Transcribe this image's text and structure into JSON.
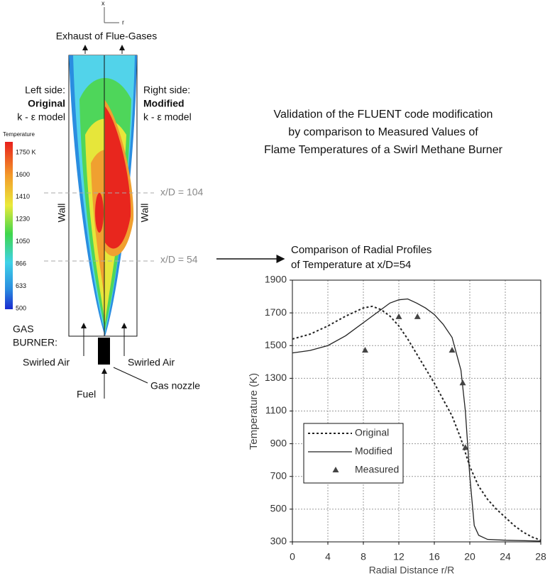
{
  "heading": [
    "Validation of the FLUENT code modification",
    "by comparison to Measured Values of",
    "Flame Temperatures of a Swirl Methane Burner"
  ],
  "diagram": {
    "axis_x": "x",
    "axis_r": "r",
    "exhaust": "Exhaust of Flue-Gases",
    "left": [
      "Left side:",
      "Original",
      "k - ε model"
    ],
    "right": [
      "Right side:",
      "Modified",
      "k - ε model"
    ],
    "wall_left": "Wall",
    "wall_right": "Wall",
    "section_upper": "x/D = 104",
    "section_lower": "x/D = 54",
    "burner": [
      "GAS",
      "BURNER:"
    ],
    "air_left": "Swirled Air",
    "air_right": "Swirled Air",
    "fuel": "Fuel",
    "nozzle": "Gas nozzle"
  },
  "colorbar": {
    "title": "Temperature",
    "labels": [
      "1750 K",
      "1600",
      "1410",
      "1230",
      "1050",
      "866",
      "633",
      "500"
    ]
  },
  "chart_data": {
    "type": "line",
    "title": [
      "Comparison of Radial Profiles",
      "of Temperature at x/D=54"
    ],
    "x_label": "Radial Distance r/R",
    "y_label": "Temperature (K)",
    "xlim": [
      0,
      28
    ],
    "ylim": [
      300,
      1900
    ],
    "xticks": [
      0,
      4,
      8,
      12,
      16,
      20,
      24,
      28
    ],
    "yticks": [
      300,
      500,
      700,
      900,
      1100,
      1300,
      1500,
      1700,
      1900
    ],
    "grid": true,
    "legend": "center left",
    "series": [
      {
        "name": "Original",
        "color": "#222222",
        "style": "dashed",
        "x": [
          0,
          2,
          4,
          6,
          8,
          9,
          10,
          11,
          12,
          13,
          14,
          15,
          16,
          17,
          18,
          19,
          20,
          21,
          22,
          23,
          24,
          25,
          26,
          27,
          28
        ],
        "values": [
          1540,
          1570,
          1620,
          1680,
          1730,
          1740,
          1720,
          1680,
          1620,
          1540,
          1450,
          1360,
          1270,
          1170,
          1070,
          930,
          760,
          640,
          560,
          500,
          450,
          400,
          360,
          330,
          310
        ]
      },
      {
        "name": "Modified",
        "color": "#222222",
        "style": "solid",
        "x": [
          0,
          2,
          4,
          6,
          8,
          10,
          11,
          12,
          13,
          14,
          15,
          16,
          17,
          18,
          19,
          19.5,
          20,
          20.5,
          21,
          22,
          24,
          28
        ],
        "values": [
          1455,
          1470,
          1500,
          1560,
          1640,
          1720,
          1760,
          1780,
          1785,
          1760,
          1730,
          1690,
          1630,
          1550,
          1350,
          1100,
          700,
          400,
          340,
          315,
          310,
          305
        ]
      },
      {
        "name": "Measured",
        "color": "#444444",
        "style": "marker",
        "x": [
          8.2,
          12,
          14.1,
          18,
          19.2,
          19.5
        ],
        "values": [
          1470,
          1675,
          1675,
          1470,
          1270,
          875
        ]
      }
    ]
  }
}
